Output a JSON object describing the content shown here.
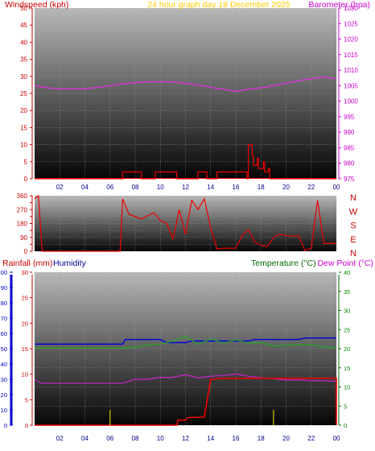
{
  "header": {
    "left": "Windspeed (kph)",
    "center": "24 hour graph day   18 December 2025",
    "right": "Barometer (hpa)"
  },
  "header_lower": {
    "rainfall": "Rainfall (mm)",
    "humidity": "Humidity",
    "temperature": "Temperature (°C)",
    "dewpoint": "Dew Point (°C)"
  },
  "direction_letters": [
    "N",
    "W",
    "S",
    "E",
    "N"
  ],
  "colors": {
    "title": "#ffcc00",
    "wind_axis": "#cc0000",
    "baro_axis": "#cc00cc",
    "rain": "#cc0000",
    "humidity": "#000099",
    "temp": "#006600",
    "dew": "#cc00cc",
    "humidity_line": "#0000dd",
    "temp_line": "#22aa22",
    "dew_line": "#cc22cc",
    "rain_line": "#ee0000",
    "wind_line": "#ee0000",
    "baro_line": "#dd33dd",
    "rainrate_line": "#cccc00"
  },
  "chart_data": [
    {
      "type": "line",
      "title": "24 hour graph day   18 December 2025",
      "x_ticks": [
        "02",
        "04",
        "06",
        "08",
        "10",
        "12",
        "14",
        "16",
        "18",
        "20",
        "22",
        "00"
      ],
      "left_axis": {
        "label": "Windspeed (kph)",
        "range": [
          0,
          50
        ],
        "ticks": [
          0,
          5,
          10,
          15,
          20,
          25,
          30,
          35,
          40,
          45,
          50
        ]
      },
      "right_axis": {
        "label": "Barometer (hpa)",
        "range": [
          975,
          1030
        ],
        "ticks": [
          975,
          980,
          985,
          990,
          995,
          1000,
          1005,
          1010,
          1015,
          1020,
          1025,
          1030
        ]
      },
      "series": [
        {
          "name": "Barometer (hpa)",
          "axis": "right",
          "x": [
            0,
            1,
            2,
            3,
            4,
            5,
            6,
            7,
            8,
            9,
            10,
            11,
            12,
            13,
            14,
            15,
            16,
            17,
            18,
            19,
            20,
            21,
            22,
            23,
            24
          ],
          "values": [
            1005,
            1004.3,
            1004,
            1004,
            1004,
            1004.4,
            1005,
            1005.6,
            1006,
            1006.3,
            1006.3,
            1006.2,
            1005.8,
            1005.2,
            1004.5,
            1003.8,
            1003.2,
            1003.8,
            1004.3,
            1005,
            1005.8,
            1006.6,
            1007.2,
            1007.8,
            1007.2
          ]
        },
        {
          "name": "Windspeed (kph)",
          "axis": "left",
          "x": [
            0,
            6.9,
            7,
            8.4,
            8.5,
            9.5,
            9.6,
            11.2,
            11.3,
            12.9,
            13.0,
            13.6,
            13.7,
            14.4,
            14.5,
            16.9,
            17.0,
            17.3,
            17.4,
            17.7,
            17.8,
            18.2,
            18.3,
            18.6,
            18.7,
            24
          ],
          "values": [
            0,
            0,
            2,
            2,
            0,
            0,
            2,
            2,
            0,
            0,
            2,
            2,
            0,
            0,
            2,
            0,
            10,
            7,
            4,
            6,
            3,
            5,
            2,
            3,
            0,
            0
          ]
        }
      ]
    },
    {
      "type": "line",
      "left_axis": {
        "range": [
          0,
          360
        ],
        "ticks": [
          0,
          45,
          90,
          135,
          180,
          225,
          270,
          315,
          360
        ],
        "tick_labels": [
          "0",
          "90",
          "180",
          "270",
          "360"
        ]
      },
      "right_labels": [
        "N",
        "W",
        "S",
        "E",
        "N"
      ],
      "series": [
        {
          "name": "Wind direction",
          "x": [
            0,
            0.3,
            0.6,
            6.8,
            7,
            7.5,
            8,
            8.5,
            9,
            9.5,
            10,
            10.5,
            11,
            11.5,
            12,
            12.5,
            13,
            13.5,
            14,
            14.5,
            15,
            15.5,
            16,
            16.5,
            17,
            17.5,
            18,
            18.5,
            19,
            19.5,
            20,
            21,
            21.5,
            22,
            22.5,
            23,
            24
          ],
          "values": [
            340,
            360,
            0,
            0,
            340,
            240,
            225,
            210,
            230,
            250,
            200,
            180,
            80,
            270,
            110,
            330,
            270,
            340,
            150,
            15,
            20,
            20,
            20,
            100,
            140,
            60,
            40,
            30,
            90,
            110,
            100,
            100,
            5,
            20,
            330,
            50,
            50
          ]
        }
      ]
    },
    {
      "type": "line",
      "x_ticks": [
        "02",
        "04",
        "06",
        "08",
        "10",
        "12",
        "14",
        "16",
        "18",
        "20",
        "22",
        "00"
      ],
      "axes": {
        "rainfall": {
          "label": "Rainfall (mm)",
          "range": [
            0,
            30
          ],
          "ticks": [
            0,
            5,
            10,
            15,
            20,
            25,
            30
          ]
        },
        "humidity": {
          "label": "Humidity",
          "range": [
            0,
            100
          ],
          "ticks": [
            0,
            10,
            20,
            30,
            40,
            50,
            60,
            70,
            80,
            90,
            100
          ]
        },
        "temperature": {
          "label": "Temperature (°C)",
          "range": [
            0,
            40
          ],
          "ticks": [
            0,
            5,
            10,
            15,
            20,
            25,
            30,
            35,
            40
          ]
        }
      },
      "series": [
        {
          "name": "Humidity",
          "axis": "humidity",
          "x": [
            0,
            7,
            7.2,
            10,
            10.5,
            12,
            12.5,
            15,
            15.5,
            17,
            17.5,
            21,
            21.5,
            24
          ],
          "values": [
            53,
            53,
            56,
            56,
            54,
            54,
            55,
            55,
            55,
            55,
            56,
            56,
            57,
            57
          ]
        },
        {
          "name": "Temperature (°C)",
          "axis": "temperature",
          "x": [
            0,
            7,
            8,
            9,
            10,
            11,
            12,
            13,
            14,
            15,
            16,
            17,
            18,
            19,
            20,
            21,
            22,
            23,
            24
          ],
          "values": [
            20.2,
            20.2,
            20.4,
            21,
            21.2,
            22,
            23.2,
            21.2,
            22.5,
            21.5,
            22.3,
            21.5,
            21.6,
            20.7,
            20.9,
            21.1,
            21,
            20.5,
            20.2
          ]
        },
        {
          "name": "Dew Point (°C)",
          "axis": "temperature",
          "x": [
            0,
            0.5,
            7,
            8,
            9,
            10,
            11,
            12,
            13,
            14,
            15,
            16,
            17,
            18,
            19,
            20,
            21,
            22,
            23,
            24
          ],
          "values": [
            12,
            11,
            11,
            12,
            12,
            12.5,
            12.5,
            13.2,
            12.4,
            12.8,
            13.0,
            13.4,
            12.8,
            12.4,
            12.2,
            11.8,
            11.9,
            11.6,
            11.6,
            11.5
          ]
        },
        {
          "name": "Rainfall (mm)",
          "axis": "rainfall",
          "x": [
            0,
            11.3,
            11.4,
            12,
            12.2,
            13.5,
            14,
            15,
            24,
            24
          ],
          "values": [
            0,
            0,
            1,
            1,
            1.5,
            1.6,
            9,
            9.2,
            9.2,
            0
          ]
        },
        {
          "name": "Rain rate",
          "axis": "rainfall",
          "x": [
            6,
            19
          ],
          "values": [
            3,
            3
          ]
        }
      ]
    }
  ]
}
